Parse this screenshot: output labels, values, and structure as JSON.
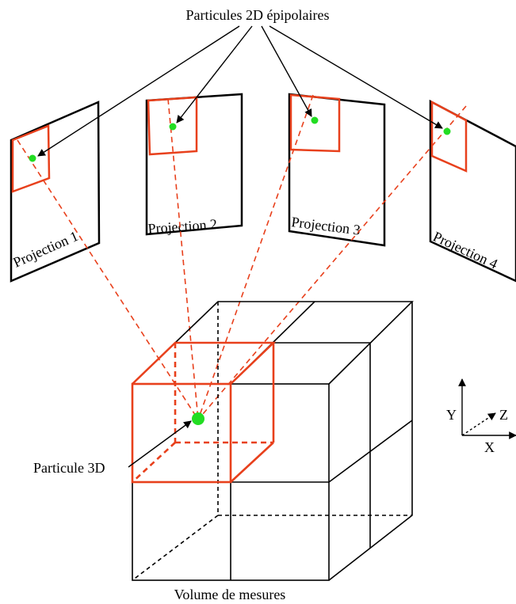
{
  "labels": {
    "top_title": "Particules 2D épipolaires",
    "projection_1": "Projection 1",
    "projection_2": "Projection 2",
    "projection_3": "Projection 3",
    "projection_4": "Projection 4",
    "particle_3d": "Particule 3D",
    "volume": "Volume de mesures"
  },
  "axes": {
    "x": "X",
    "y": "Y",
    "z": "Z"
  },
  "colors": {
    "outline": "#000000",
    "highlight": "#e8401c",
    "particle": "#22dd22"
  }
}
